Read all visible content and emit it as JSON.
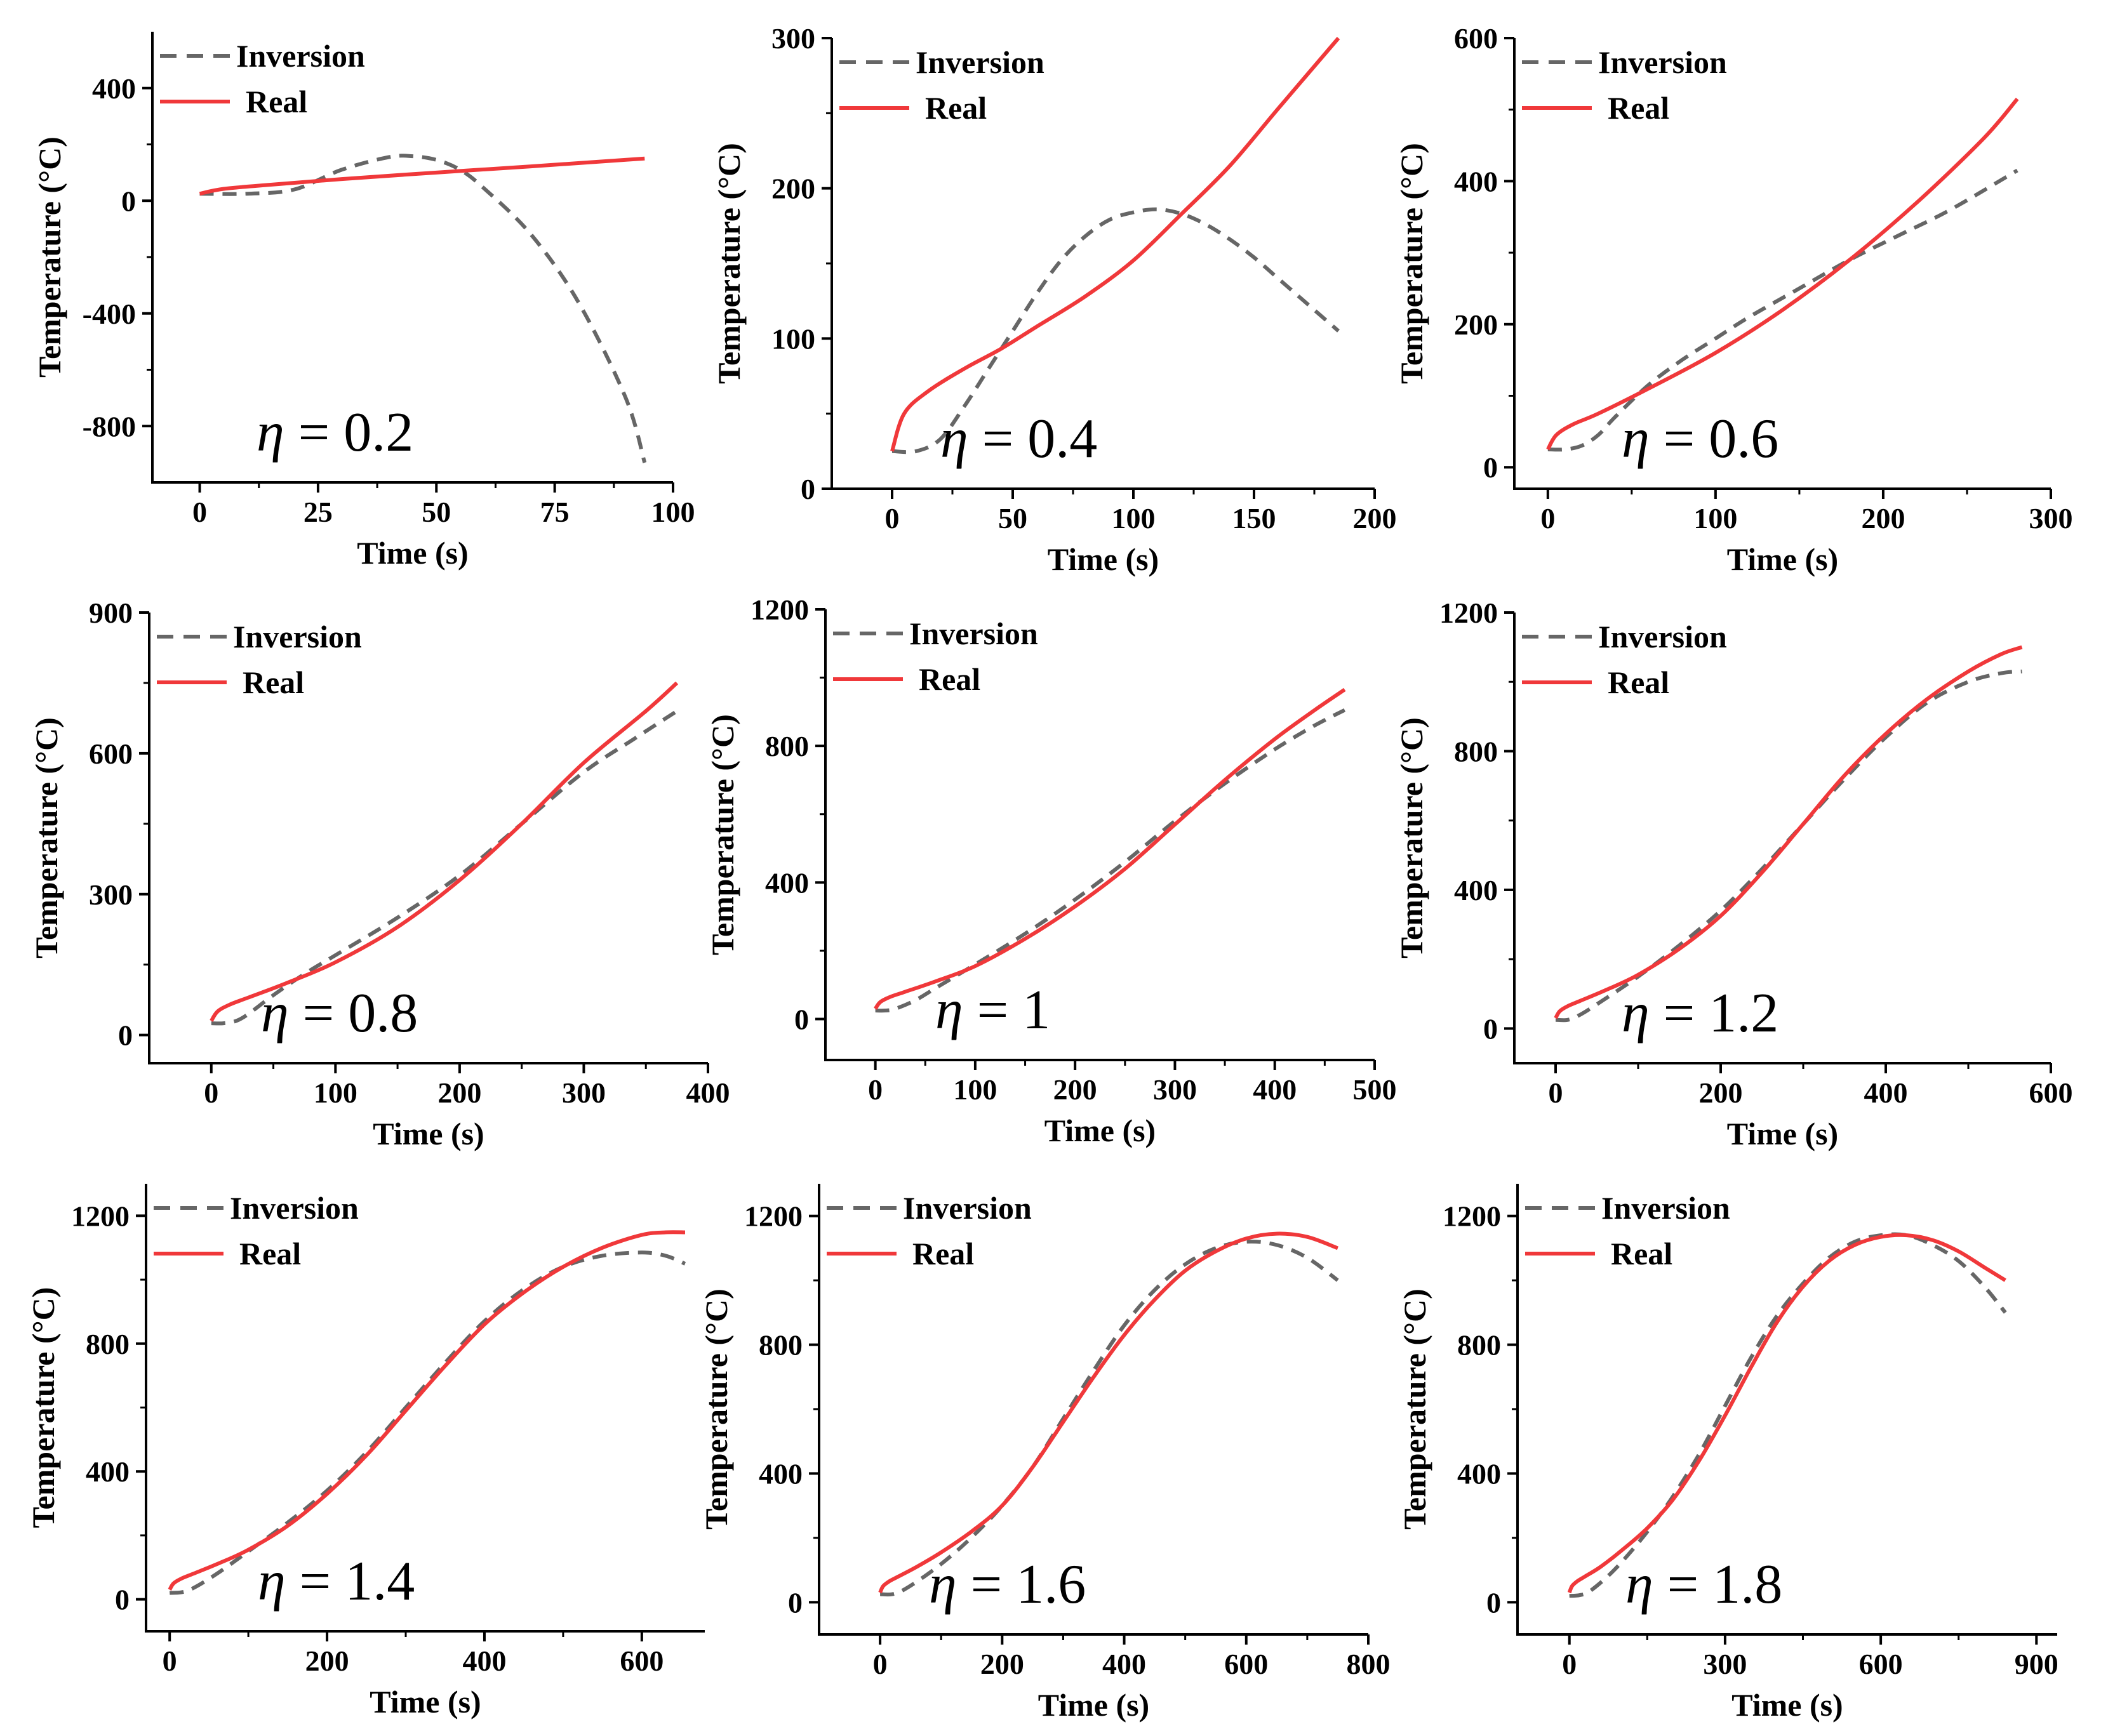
{
  "figure": {
    "legend": {
      "inversion": "Inversion",
      "real": "Real"
    },
    "colors": {
      "inversion": "#666666",
      "real": "#f0383a",
      "axis": "#000000"
    }
  },
  "chart_data": [
    {
      "type": "line",
      "id": "eta-0.2",
      "annotation": "η = 0.2",
      "eta_value": "0.2",
      "xlabel": "Time (s)",
      "ylabel": "Temperature (°C)",
      "xlim": [
        -10,
        100
      ],
      "ylim": [
        -1000,
        600
      ],
      "xticks": [
        0,
        25,
        50,
        75,
        100
      ],
      "yticks": [
        -800,
        -400,
        0,
        400
      ],
      "series": [
        {
          "name": "Inversion",
          "style": "dashed",
          "x": [
            0,
            10,
            20,
            30,
            40,
            45,
            50,
            55,
            60,
            70,
            80,
            90,
            94
          ],
          "y": [
            25,
            25,
            40,
            110,
            155,
            158,
            145,
            110,
            45,
            -120,
            -360,
            -700,
            -930
          ]
        },
        {
          "name": "Real",
          "style": "solid",
          "x": [
            0,
            5,
            15,
            30,
            50,
            70,
            94
          ],
          "y": [
            25,
            42,
            57,
            77,
            100,
            122,
            150
          ]
        }
      ]
    },
    {
      "type": "line",
      "id": "eta-0.4",
      "annotation": "η = 0.4",
      "eta_value": "0.4",
      "xlabel": "Time (s)",
      "ylabel": "Temperature (°C)",
      "xlim": [
        -25,
        200
      ],
      "ylim": [
        0,
        300
      ],
      "xticks": [
        0,
        50,
        100,
        150,
        200
      ],
      "yticks": [
        0,
        100,
        200,
        300
      ],
      "series": [
        {
          "name": "Inversion",
          "style": "dashed",
          "x": [
            0,
            10,
            20,
            30,
            40,
            50,
            60,
            70,
            80,
            90,
            100,
            110,
            120,
            130,
            140,
            150,
            160,
            170,
            185
          ],
          "y": [
            25,
            25,
            33,
            55,
            80,
            105,
            130,
            152,
            168,
            179,
            184,
            186,
            183,
            176,
            166,
            154,
            140,
            126,
            105
          ]
        },
        {
          "name": "Real",
          "style": "solid",
          "x": [
            0,
            5,
            15,
            30,
            45,
            60,
            80,
            100,
            120,
            140,
            160,
            185
          ],
          "y": [
            25,
            50,
            65,
            80,
            93,
            108,
            128,
            152,
            183,
            215,
            253,
            300
          ]
        }
      ]
    },
    {
      "type": "line",
      "id": "eta-0.6",
      "annotation": "η = 0.6",
      "eta_value": "0.6",
      "xlabel": "Time (s)",
      "ylabel": "Temperature (°C)",
      "xlim": [
        -20,
        300
      ],
      "ylim": [
        -30,
        600
      ],
      "xticks": [
        0,
        100,
        200,
        300
      ],
      "yticks": [
        0,
        200,
        400,
        600
      ],
      "series": [
        {
          "name": "Inversion",
          "style": "dashed",
          "x": [
            0,
            10,
            20,
            30,
            40,
            60,
            80,
            100,
            120,
            150,
            180,
            210,
            240,
            280
          ],
          "y": [
            25,
            25,
            30,
            45,
            70,
            115,
            150,
            180,
            210,
            250,
            290,
            325,
            360,
            415
          ]
        },
        {
          "name": "Real",
          "style": "solid",
          "x": [
            0,
            5,
            15,
            30,
            60,
            100,
            140,
            180,
            220,
            260,
            280
          ],
          "y": [
            25,
            45,
            60,
            75,
            110,
            160,
            220,
            290,
            370,
            460,
            515
          ]
        }
      ]
    },
    {
      "type": "line",
      "id": "eta-0.8",
      "annotation": "η = 0.8",
      "eta_value": "0.8",
      "xlabel": "Time (s)",
      "ylabel": "Temperature (°C)",
      "xlim": [
        -50,
        400
      ],
      "ylim": [
        -60,
        900
      ],
      "xticks": [
        0,
        100,
        200,
        300,
        400
      ],
      "yticks": [
        0,
        300,
        600,
        900
      ],
      "series": [
        {
          "name": "Inversion",
          "style": "dashed",
          "x": [
            0,
            10,
            20,
            30,
            50,
            75,
            100,
            150,
            200,
            250,
            300,
            340,
            375
          ],
          "y": [
            25,
            25,
            30,
            45,
            85,
            130,
            170,
            250,
            340,
            450,
            560,
            630,
            690
          ]
        },
        {
          "name": "Real",
          "style": "solid",
          "x": [
            0,
            5,
            15,
            30,
            60,
            100,
            150,
            200,
            250,
            300,
            350,
            375
          ],
          "y": [
            30,
            50,
            65,
            80,
            110,
            155,
            230,
            330,
            450,
            580,
            690,
            750
          ]
        }
      ]
    },
    {
      "type": "line",
      "id": "eta-1",
      "annotation": "η = 1",
      "eta_value": "1",
      "xlabel": "Time (s)",
      "ylabel": "Temperature (°C)",
      "xlim": [
        -50,
        500
      ],
      "ylim": [
        -120,
        1200
      ],
      "xticks": [
        0,
        100,
        200,
        300,
        400,
        500
      ],
      "yticks": [
        0,
        400,
        800,
        1200
      ],
      "series": [
        {
          "name": "Inversion",
          "style": "dashed",
          "x": [
            0,
            10,
            20,
            40,
            60,
            100,
            150,
            200,
            250,
            300,
            350,
            400,
            440,
            470
          ],
          "y": [
            25,
            25,
            30,
            55,
            90,
            160,
            250,
            350,
            460,
            580,
            690,
            790,
            860,
            905
          ]
        },
        {
          "name": "Real",
          "style": "solid",
          "x": [
            0,
            5,
            15,
            30,
            60,
            100,
            150,
            200,
            250,
            300,
            350,
            400,
            440,
            470
          ],
          "y": [
            30,
            50,
            65,
            80,
            110,
            155,
            235,
            330,
            440,
            570,
            700,
            820,
            905,
            965
          ]
        }
      ]
    },
    {
      "type": "line",
      "id": "eta-1.2",
      "annotation": "η = 1.2",
      "eta_value": "1.2",
      "xlabel": "Time (s)",
      "ylabel": "Temperature (°C)",
      "xlim": [
        -50,
        600
      ],
      "ylim": [
        -100,
        1200
      ],
      "xticks": [
        0,
        200,
        400,
        600
      ],
      "yticks": [
        0,
        400,
        800,
        1200
      ],
      "series": [
        {
          "name": "Inversion",
          "style": "dashed",
          "x": [
            0,
            15,
            30,
            50,
            100,
            150,
            200,
            250,
            300,
            350,
            400,
            450,
            500,
            540,
            565
          ],
          "y": [
            25,
            25,
            40,
            70,
            150,
            240,
            340,
            460,
            590,
            720,
            840,
            940,
            1000,
            1025,
            1030
          ]
        },
        {
          "name": "Real",
          "style": "solid",
          "x": [
            0,
            5,
            15,
            30,
            60,
            100,
            150,
            200,
            250,
            300,
            350,
            400,
            450,
            500,
            540,
            565
          ],
          "y": [
            30,
            50,
            65,
            80,
            110,
            155,
            230,
            325,
            450,
            590,
            730,
            850,
            950,
            1030,
            1080,
            1100
          ]
        }
      ]
    },
    {
      "type": "line",
      "id": "eta-1.4",
      "annotation": "η = 1.4",
      "eta_value": "1.4",
      "xlabel": "Time (s)",
      "ylabel": "Temperature (°C)",
      "xlim": [
        -30,
        680
      ],
      "ylim": [
        -100,
        1300
      ],
      "xticks": [
        0,
        200,
        400,
        600
      ],
      "yticks": [
        0,
        400,
        800,
        1200
      ],
      "series": [
        {
          "name": "Inversion",
          "style": "dashed",
          "x": [
            0,
            15,
            30,
            60,
            100,
            150,
            200,
            250,
            300,
            350,
            400,
            450,
            500,
            550,
            600,
            630,
            655
          ],
          "y": [
            20,
            22,
            35,
            80,
            150,
            240,
            340,
            460,
            600,
            740,
            870,
            970,
            1040,
            1075,
            1085,
            1075,
            1050
          ]
        },
        {
          "name": "Real",
          "style": "solid",
          "x": [
            0,
            5,
            15,
            30,
            60,
            100,
            150,
            200,
            250,
            300,
            350,
            400,
            450,
            500,
            550,
            600,
            630,
            655
          ],
          "y": [
            30,
            50,
            65,
            80,
            110,
            155,
            230,
            330,
            450,
            590,
            730,
            860,
            960,
            1040,
            1100,
            1140,
            1148,
            1148
          ]
        }
      ]
    },
    {
      "type": "line",
      "id": "eta-1.6",
      "annotation": "η = 1.6",
      "eta_value": "1.6",
      "xlabel": "Time (s)",
      "ylabel": "Temperature (°C)",
      "xlim": [
        -100,
        800
      ],
      "ylim": [
        -100,
        1300
      ],
      "xticks": [
        0,
        200,
        400,
        600,
        800
      ],
      "yticks": [
        0,
        400,
        800,
        1200
      ],
      "series": [
        {
          "name": "Inversion",
          "style": "dashed",
          "x": [
            0,
            20,
            40,
            80,
            120,
            160,
            200,
            250,
            300,
            350,
            400,
            450,
            500,
            550,
            600,
            650,
            700,
            750
          ],
          "y": [
            25,
            25,
            40,
            90,
            150,
            220,
            300,
            420,
            570,
            720,
            860,
            970,
            1050,
            1100,
            1120,
            1110,
            1070,
            1000
          ]
        },
        {
          "name": "Real",
          "style": "solid",
          "x": [
            0,
            5,
            15,
            30,
            60,
            100,
            150,
            200,
            250,
            300,
            350,
            400,
            450,
            500,
            550,
            600,
            650,
            700,
            750
          ],
          "y": [
            30,
            50,
            65,
            80,
            110,
            155,
            220,
            300,
            420,
            560,
            700,
            830,
            940,
            1030,
            1090,
            1130,
            1145,
            1135,
            1100
          ]
        }
      ]
    },
    {
      "type": "line",
      "id": "eta-1.8",
      "annotation": "η = 1.8",
      "eta_value": "1.8",
      "xlabel": "Time (s)",
      "ylabel": "Temperature (°C)",
      "xlim": [
        -100,
        940
      ],
      "ylim": [
        -100,
        1300
      ],
      "xticks": [
        0,
        300,
        600,
        900
      ],
      "yticks": [
        0,
        400,
        800,
        1200
      ],
      "series": [
        {
          "name": "Inversion",
          "style": "dashed",
          "x": [
            0,
            20,
            40,
            80,
            120,
            160,
            200,
            250,
            300,
            350,
            400,
            450,
            500,
            550,
            600,
            650,
            700,
            750,
            800,
            840
          ],
          "y": [
            20,
            22,
            35,
            90,
            160,
            240,
            330,
            460,
            610,
            760,
            890,
            990,
            1070,
            1120,
            1140,
            1140,
            1110,
            1060,
            980,
            900
          ]
        },
        {
          "name": "Real",
          "style": "solid",
          "x": [
            0,
            5,
            15,
            30,
            60,
            100,
            150,
            200,
            250,
            300,
            350,
            400,
            450,
            500,
            550,
            600,
            650,
            700,
            750,
            800,
            840
          ],
          "y": [
            30,
            50,
            65,
            80,
            110,
            160,
            230,
            320,
            440,
            580,
            730,
            870,
            980,
            1060,
            1110,
            1135,
            1140,
            1125,
            1090,
            1040,
            1000
          ]
        }
      ]
    }
  ]
}
